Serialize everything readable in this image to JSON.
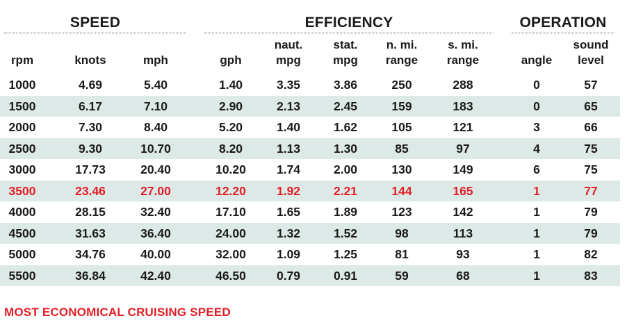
{
  "groups": [
    {
      "title": "SPEED"
    },
    {
      "title": "EFFICIENCY"
    },
    {
      "title": "OPERATION"
    }
  ],
  "columns": [
    {
      "line1": "",
      "line2": "rpm"
    },
    {
      "line1": "",
      "line2": "knots"
    },
    {
      "line1": "",
      "line2": "mph"
    },
    {
      "line1": "",
      "line2": "gph"
    },
    {
      "line1": "naut.",
      "line2": "mpg"
    },
    {
      "line1": "stat.",
      "line2": "mpg"
    },
    {
      "line1": "n. mi.",
      "line2": "range"
    },
    {
      "line1": "s. mi.",
      "line2": "range"
    },
    {
      "line1": "",
      "line2": "angle"
    },
    {
      "line1": "sound",
      "line2": "level"
    }
  ],
  "rows": [
    [
      "1000",
      "4.69",
      "5.40",
      "1.40",
      "3.35",
      "3.86",
      "250",
      "288",
      "0",
      "57"
    ],
    [
      "1500",
      "6.17",
      "7.10",
      "2.90",
      "2.13",
      "2.45",
      "159",
      "183",
      "0",
      "65"
    ],
    [
      "2000",
      "7.30",
      "8.40",
      "5.20",
      "1.40",
      "1.62",
      "105",
      "121",
      "3",
      "66"
    ],
    [
      "2500",
      "9.30",
      "10.70",
      "8.20",
      "1.13",
      "1.30",
      "85",
      "97",
      "4",
      "75"
    ],
    [
      "3000",
      "17.73",
      "20.40",
      "10.20",
      "1.74",
      "2.00",
      "130",
      "149",
      "6",
      "75"
    ],
    [
      "3500",
      "23.46",
      "27.00",
      "12.20",
      "1.92",
      "2.21",
      "144",
      "165",
      "1",
      "77"
    ],
    [
      "4000",
      "28.15",
      "32.40",
      "17.10",
      "1.65",
      "1.89",
      "123",
      "142",
      "1",
      "79"
    ],
    [
      "4500",
      "31.63",
      "36.40",
      "24.00",
      "1.32",
      "1.52",
      "98",
      "113",
      "1",
      "79"
    ],
    [
      "5000",
      "34.76",
      "40.00",
      "32.00",
      "1.09",
      "1.25",
      "81",
      "93",
      "1",
      "82"
    ],
    [
      "5500",
      "36.84",
      "42.40",
      "46.50",
      "0.79",
      "0.91",
      "59",
      "68",
      "1",
      "83"
    ]
  ],
  "highlight_row_index": 5,
  "colors": {
    "highlight": "#e21f26",
    "stripe": "#dde9e6",
    "text": "#1a1a1a"
  },
  "footer": "MOST ECONOMICAL CRUISING SPEED"
}
